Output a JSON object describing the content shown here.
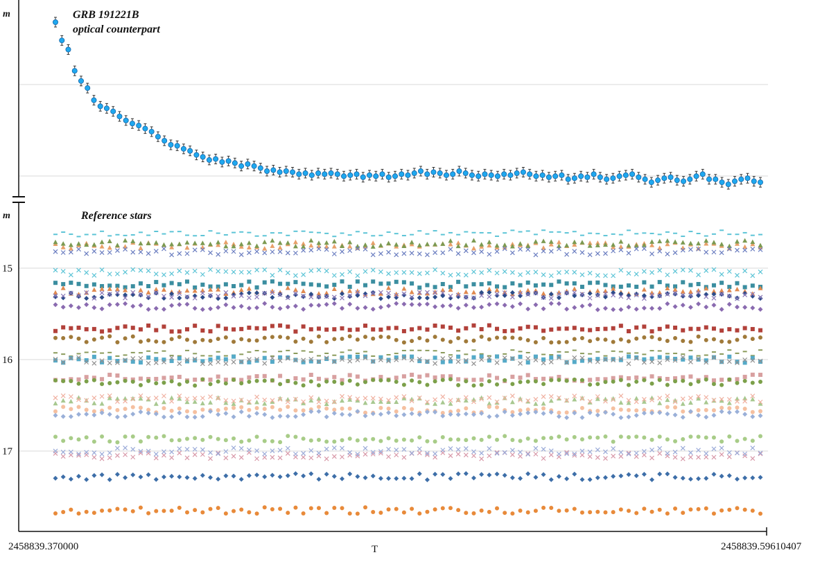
{
  "chart_data": [
    {
      "type": "scatter",
      "panel": "top",
      "title": "GRB 191221B\noptical counterpart",
      "title_lines": [
        "GRB 191221B",
        "optical counterpart"
      ],
      "ylabel": "m",
      "xlabel": "T",
      "y_inverted": true,
      "grid": true,
      "xlim": [
        2458839.37,
        2458839.59610407
      ],
      "series": [
        {
          "name": "GRB 191221B optical counterpart",
          "color": "#1fa8ef",
          "marker": "circle",
          "error_bars": true,
          "values": [
            0.0,
            0.18,
            0.27,
            0.48,
            0.58,
            0.65,
            0.77,
            0.83,
            0.85,
            0.88,
            0.93,
            0.97,
            1.0,
            1.02,
            1.05,
            1.08,
            1.13,
            1.17,
            1.21,
            1.22,
            1.25,
            1.27,
            1.31,
            1.33,
            1.36,
            1.35,
            1.38,
            1.37,
            1.39,
            1.42,
            1.4,
            1.42,
            1.44,
            1.47,
            1.46,
            1.48,
            1.47,
            1.48,
            1.5,
            1.49,
            1.51,
            1.49,
            1.5,
            1.49,
            1.5,
            1.52,
            1.51,
            1.5,
            1.53,
            1.51,
            1.52,
            1.5,
            1.53,
            1.52,
            1.5,
            1.51,
            1.49,
            1.47,
            1.5,
            1.48,
            1.49,
            1.51,
            1.5,
            1.47,
            1.49,
            1.51,
            1.52,
            1.5,
            1.51,
            1.52,
            1.5,
            1.51,
            1.49,
            1.48,
            1.5,
            1.52,
            1.51,
            1.53,
            1.52,
            1.51,
            1.55,
            1.54,
            1.52,
            1.53,
            1.5,
            1.53,
            1.55,
            1.54,
            1.52,
            1.51,
            1.5,
            1.53,
            1.55,
            1.58,
            1.56,
            1.54,
            1.53,
            1.56,
            1.57,
            1.55,
            1.52,
            1.5,
            1.55,
            1.55,
            1.58,
            1.6,
            1.57,
            1.55,
            1.54,
            1.57,
            1.58
          ]
        }
      ]
    },
    {
      "type": "scatter",
      "panel": "bottom",
      "title": "Reference stars",
      "ylabel": "m",
      "xlabel": "T",
      "y_inverted": true,
      "ylim": [
        14.5,
        18.2
      ],
      "yticks": [
        15,
        16,
        17
      ],
      "grid": true,
      "xlim": [
        2458839.37,
        2458839.59610407
      ],
      "xticklabels": [
        "2458839.370000",
        "2458839.59610407"
      ],
      "series": [
        {
          "color": "#5cc4d6",
          "marker": "dash",
          "base": 14.62
        },
        {
          "color": "#e8a06a",
          "marker": "triangle",
          "base": 14.75
        },
        {
          "color": "#7c9a52",
          "marker": "triangle",
          "base": 14.73
        },
        {
          "color": "#6a7dc0",
          "marker": "x",
          "base": 14.82
        },
        {
          "color": "#5cc4d6",
          "marker": "x",
          "base": 15.05
        },
        {
          "color": "#3b8ea0",
          "marker": "square",
          "base": 15.18
        },
        {
          "color": "#e08a50",
          "marker": "triangle",
          "base": 15.25
        },
        {
          "color": "#2d4d8a",
          "marker": "diamond",
          "base": 15.3
        },
        {
          "color": "#8a78b8",
          "marker": "x",
          "base": 15.3
        },
        {
          "color": "#8a6bb0",
          "marker": "diamond",
          "base": 15.42
        },
        {
          "color": "#b2413a",
          "marker": "square",
          "base": 15.66
        },
        {
          "color": "#a07a3a",
          "marker": "circle",
          "base": 15.78
        },
        {
          "color": "#8a9a5a",
          "marker": "dash",
          "base": 15.93
        },
        {
          "color": "#55aac8",
          "marker": "square",
          "base": 16.0
        },
        {
          "color": "#909090",
          "marker": "x",
          "base": 16.01
        },
        {
          "color": "#d8a0a0",
          "marker": "square",
          "base": 16.2
        },
        {
          "color": "#7ca04a",
          "marker": "circle",
          "base": 16.25
        },
        {
          "color": "#a8c890",
          "marker": "triangle",
          "base": 16.45
        },
        {
          "color": "#f0b0a0",
          "marker": "x",
          "base": 16.43
        },
        {
          "color": "#f5c0a0",
          "marker": "circle",
          "base": 16.55
        },
        {
          "color": "#9ab0d8",
          "marker": "diamond",
          "base": 16.6
        },
        {
          "color": "#a8cc88",
          "marker": "circle",
          "base": 16.87
        },
        {
          "color": "#d898a8",
          "marker": "x",
          "base": 17.05
        },
        {
          "color": "#9aaad8",
          "marker": "x",
          "base": 17.0
        },
        {
          "color": "#3d6ea8",
          "marker": "diamond",
          "base": 17.28
        },
        {
          "color": "#e88a3a",
          "marker": "circle",
          "base": 17.65
        }
      ]
    }
  ]
}
